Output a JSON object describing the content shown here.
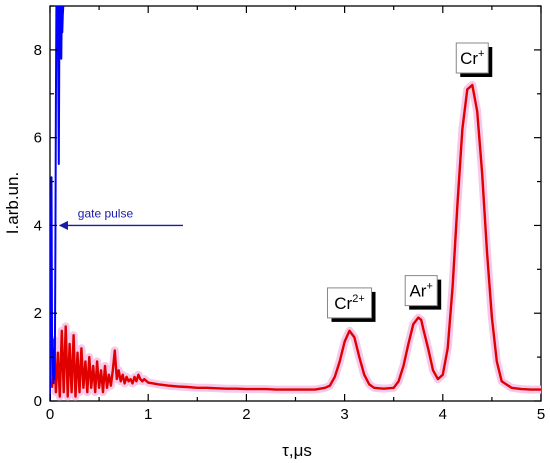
{
  "chart_data": {
    "type": "line",
    "xlabel": "τ,μs",
    "ylabel": "I.arb.un.",
    "xlim": [
      0,
      5
    ],
    "ylim": [
      0,
      9
    ],
    "x_ticks": [
      "0",
      "1",
      "2",
      "3",
      "4",
      "5"
    ],
    "y_ticks": [
      "0",
      "2",
      "4",
      "6",
      "8"
    ],
    "grid": false,
    "colors": {
      "signal": "#e00000",
      "glow": "#f6c8ea",
      "gate": "#0000ff",
      "arrow": "#1a1aa8"
    },
    "annotations": {
      "gate_pulse": {
        "text": "gate pulse",
        "x": 0.13,
        "y": 4.0
      },
      "peaks": [
        {
          "base": "Cr",
          "charge": "2+",
          "x": 3.05,
          "y": 1.62
        },
        {
          "base": "Ar",
          "charge": "+",
          "x": 3.78,
          "y": 1.9
        },
        {
          "base": "Cr",
          "charge": "+",
          "x": 4.3,
          "y": 7.2
        }
      ]
    },
    "series": [
      {
        "style": "blue",
        "x": [
          0,
          0.005,
          0.01,
          0.015,
          0.02,
          0.025,
          0.03,
          0.035,
          0.04,
          0.045,
          0.05,
          0.055,
          0.06,
          0.065,
          0.07,
          0.075,
          0.08,
          0.085,
          0.09,
          0.095,
          0.1,
          0.105,
          0.11,
          0.115,
          0.12,
          0.125,
          0.13,
          0.135,
          0.14
        ],
        "y": [
          0,
          2.2,
          4.0,
          5.1,
          1.5,
          0.6,
          1.2,
          0.4,
          0.9,
          0.5,
          1.1,
          3.5,
          6.8,
          9.0,
          9.0,
          8.2,
          9.0,
          7.4,
          5.4,
          8.0,
          9.0,
          8.6,
          9.0,
          7.8,
          9.0,
          8.4,
          8.8,
          9.0,
          9.0
        ]
      },
      {
        "style": "red",
        "x": [
          0.02,
          0.04,
          0.06,
          0.08,
          0.1,
          0.12,
          0.14,
          0.16,
          0.18,
          0.2,
          0.22,
          0.24,
          0.26,
          0.28,
          0.3,
          0.32,
          0.34,
          0.36,
          0.38,
          0.4,
          0.42,
          0.44,
          0.46,
          0.48,
          0.5,
          0.52,
          0.54,
          0.56,
          0.58,
          0.6,
          0.62,
          0.64,
          0.66,
          0.68,
          0.7,
          0.72,
          0.74,
          0.76,
          0.78,
          0.8,
          0.82,
          0.84,
          0.86,
          0.88,
          0.9,
          0.92,
          0.94,
          0.96,
          1.0,
          1.1,
          1.2,
          1.3,
          1.4,
          1.5,
          1.6,
          1.7,
          1.8,
          1.9,
          2.0,
          2.1,
          2.2,
          2.3,
          2.4,
          2.5,
          2.6,
          2.7,
          2.8,
          2.85,
          2.9,
          2.95,
          3.0,
          3.05,
          3.1,
          3.15,
          3.2,
          3.25,
          3.3,
          3.4,
          3.5,
          3.55,
          3.6,
          3.65,
          3.7,
          3.75,
          3.78,
          3.8,
          3.85,
          3.9,
          3.95,
          4.0,
          4.05,
          4.1,
          4.15,
          4.2,
          4.25,
          4.3,
          4.35,
          4.4,
          4.45,
          4.5,
          4.55,
          4.6,
          4.7,
          4.8,
          4.9,
          5.0
        ],
        "y": [
          0.3,
          1.4,
          0.2,
          1.1,
          0.1,
          1.6,
          0.2,
          1.7,
          0.1,
          1.3,
          0.2,
          1.5,
          0.1,
          1.1,
          0.2,
          1.2,
          0.3,
          0.9,
          0.2,
          1.0,
          0.3,
          0.8,
          0.2,
          0.9,
          0.3,
          0.7,
          0.2,
          0.8,
          0.3,
          0.6,
          0.35,
          0.7,
          1.15,
          0.5,
          0.7,
          0.45,
          0.6,
          0.4,
          0.55,
          0.45,
          0.5,
          0.4,
          0.55,
          0.45,
          0.6,
          0.5,
          0.45,
          0.5,
          0.42,
          0.38,
          0.35,
          0.33,
          0.32,
          0.3,
          0.3,
          0.29,
          0.28,
          0.28,
          0.27,
          0.27,
          0.27,
          0.26,
          0.26,
          0.26,
          0.26,
          0.26,
          0.3,
          0.35,
          0.55,
          0.9,
          1.35,
          1.6,
          1.45,
          1.0,
          0.6,
          0.38,
          0.3,
          0.28,
          0.3,
          0.45,
          0.8,
          1.3,
          1.75,
          1.9,
          1.85,
          1.65,
          1.2,
          0.7,
          0.5,
          0.6,
          1.2,
          2.6,
          4.5,
          6.2,
          7.1,
          7.2,
          6.6,
          5.2,
          3.4,
          1.9,
          0.9,
          0.45,
          0.3,
          0.27,
          0.26,
          0.26
        ]
      }
    ]
  }
}
